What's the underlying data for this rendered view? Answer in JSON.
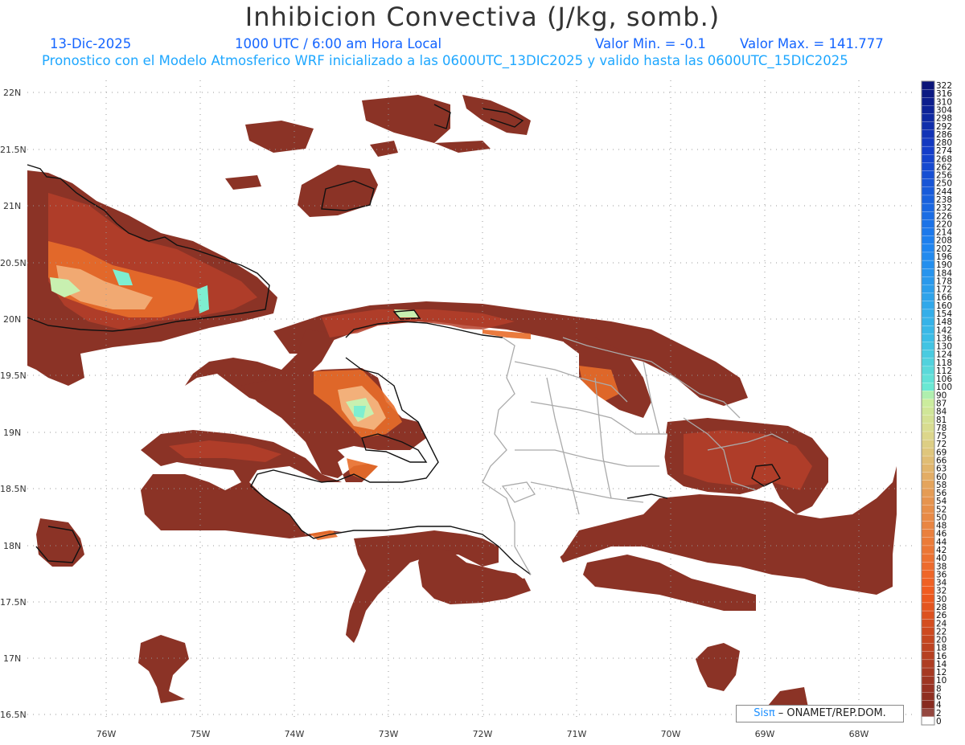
{
  "title": "Inhibicion Convectiva (J/kg, somb.)",
  "header": {
    "date": "13-Dic-2025",
    "time": "1000 UTC / 6:00 am Hora Local",
    "value_min": "Valor Min. = -0.1",
    "value_max": "Valor Max. = 141.777",
    "forecast": "Pronostico con el Modelo Atmosferico WRF inicializado a las 0600UTC_13DIC2025 y valido hasta las  0600UTC_15DIC2025"
  },
  "axes": {
    "lat_labels": [
      "22N",
      "21.5N",
      "21N",
      "20.5N",
      "20N",
      "19.5N",
      "19N",
      "18.5N",
      "18N",
      "17.5N",
      "17N",
      "16.5N"
    ],
    "lon_labels": [
      "76W",
      "75W",
      "74W",
      "73W",
      "72W",
      "71W",
      "70W",
      "69W",
      "68W"
    ]
  },
  "colorbar": {
    "labels": [
      "322",
      "316",
      "310",
      "304",
      "298",
      "292",
      "286",
      "280",
      "274",
      "268",
      "262",
      "256",
      "250",
      "244",
      "238",
      "232",
      "226",
      "220",
      "214",
      "208",
      "202",
      "196",
      "190",
      "184",
      "178",
      "172",
      "166",
      "160",
      "154",
      "148",
      "142",
      "136",
      "130",
      "124",
      "118",
      "112",
      "106",
      "100",
      "90",
      "87",
      "84",
      "81",
      "78",
      "75",
      "72",
      "69",
      "66",
      "63",
      "60",
      "58",
      "56",
      "54",
      "52",
      "50",
      "48",
      "46",
      "44",
      "42",
      "40",
      "38",
      "36",
      "34",
      "32",
      "30",
      "28",
      "26",
      "24",
      "22",
      "20",
      "18",
      "16",
      "14",
      "12",
      "10",
      "8",
      "6",
      "4",
      "2",
      "0"
    ]
  },
  "credit": {
    "sis": "Sisπ",
    "rest": " – ONAMET/REP.DOM."
  },
  "colors": {
    "fill_dark": "#8b3326",
    "fill_mid": "#b5402a",
    "fill_orange": "#e86d2a",
    "fill_light": "#f3b07a",
    "fill_green": "#c8f0b0",
    "fill_cyan": "#7eeed0",
    "coast": "#111111",
    "provinces": "#aaaaaa"
  }
}
